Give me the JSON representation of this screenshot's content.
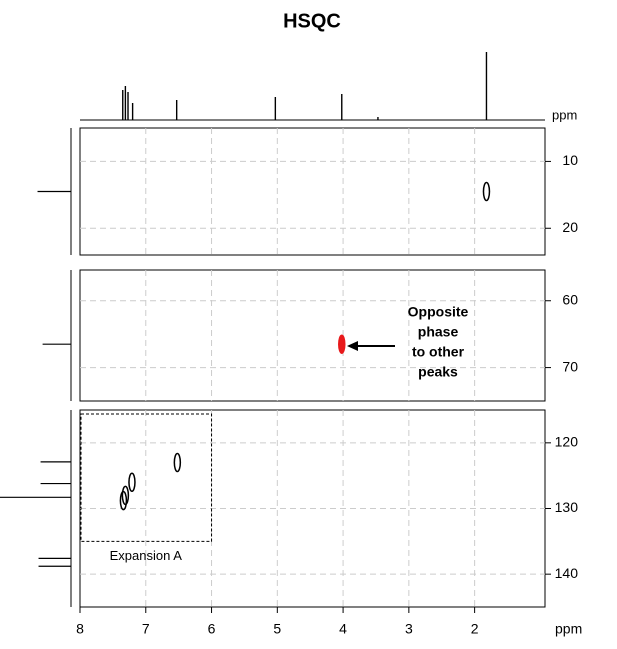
{
  "chart_data": {
    "type": "hsqc",
    "title": "HSQC",
    "x_label": "ppm",
    "xlim": [
      8,
      0.93
    ],
    "xticks": [
      8,
      7,
      6,
      5,
      4,
      3,
      2
    ],
    "grid": true,
    "proton_spectrum": {
      "label": "ppm",
      "ppm": [
        7.35,
        7.31,
        7.27,
        7.2,
        6.53,
        5.03,
        4.02,
        3.47,
        1.82
      ],
      "intensity": [
        30,
        34,
        28,
        17,
        20,
        23,
        26,
        3,
        68
      ]
    },
    "panels": [
      {
        "ylim": [
          5,
          24
        ],
        "yticks": [
          10,
          20
        ],
        "carbon_ppm": [
          14.5
        ],
        "carbon_intensity": [
          33
        ],
        "peaks": {
          "x": [
            1.82
          ],
          "y": [
            14.5
          ],
          "color": "#000000"
        }
      },
      {
        "ylim": [
          55.4,
          75
        ],
        "yticks": [
          60,
          70
        ],
        "carbon_ppm": [
          66.5
        ],
        "carbon_intensity": [
          28
        ],
        "peaks": {
          "x": [
            4.02
          ],
          "y": [
            66.5
          ],
          "color": "#e8191b"
        }
      },
      {
        "ylim": [
          115,
          145
        ],
        "yticks": [
          120,
          130,
          140
        ],
        "carbon_ppm": [
          122.9,
          126.2,
          128.3,
          137.6,
          138.8
        ],
        "carbon_intensity": [
          30,
          30,
          70,
          32,
          32
        ],
        "peaks": {
          "x": [
            6.52,
            7.21,
            7.31,
            7.34
          ],
          "y": [
            123,
            126,
            128,
            128.8
          ],
          "color": "#000000"
        }
      }
    ],
    "annotation": {
      "lines": [
        "Opposite",
        "phase",
        "to other",
        "peaks"
      ]
    },
    "expansion": {
      "label": "Expansion A",
      "xlim": [
        8,
        6
      ],
      "ylim": [
        115,
        135
      ]
    }
  }
}
